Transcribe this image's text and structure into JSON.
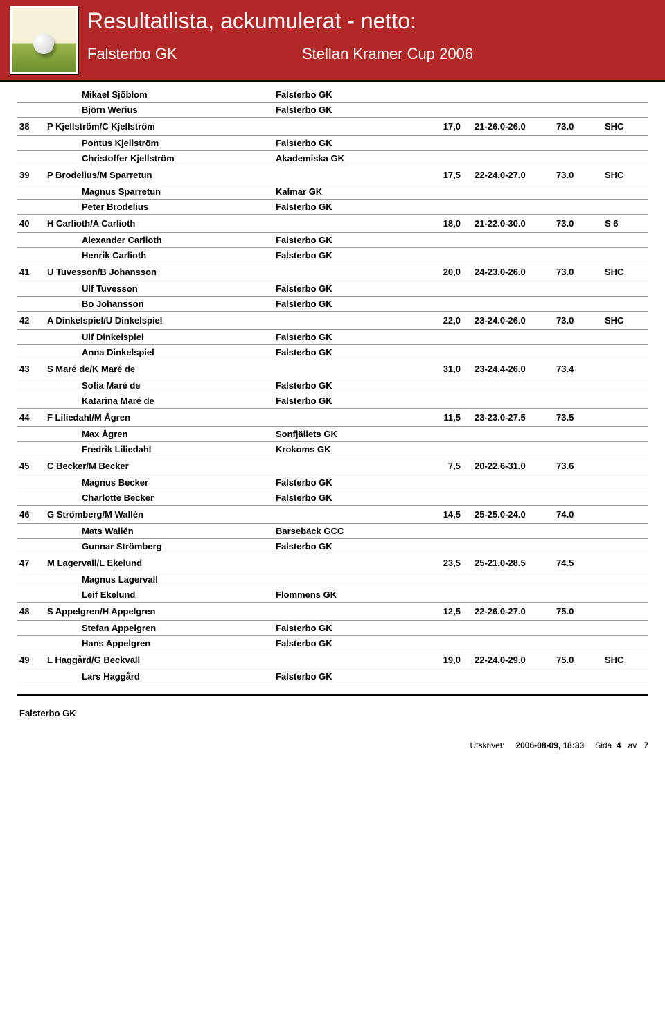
{
  "header": {
    "title": "Resultatlista, ackumulerat - netto:",
    "club": "Falsterbo GK",
    "event": "Stellan Kramer Cup 2006",
    "colors": {
      "bg": "#b22826",
      "text": "#ffffff"
    }
  },
  "pre_rows": [
    {
      "type": "player",
      "name": "Mikael Sjöblom",
      "club": "Falsterbo GK"
    },
    {
      "type": "player",
      "name": "Björn Werius",
      "club": "Falsterbo GK"
    }
  ],
  "groups": [
    {
      "rank": "38",
      "team": "P Kjellström/C Kjellström",
      "hcp": "17,0",
      "rounds": "21-26.0-26.0",
      "score": "73.0",
      "note": "SHC",
      "players": [
        {
          "name": "Pontus Kjellström",
          "club": "Falsterbo GK"
        },
        {
          "name": "Christoffer Kjellström",
          "club": "Akademiska GK"
        }
      ]
    },
    {
      "rank": "39",
      "team": "P Brodelius/M Sparretun",
      "hcp": "17,5",
      "rounds": "22-24.0-27.0",
      "score": "73.0",
      "note": "SHC",
      "players": [
        {
          "name": "Magnus Sparretun",
          "club": "Kalmar GK"
        },
        {
          "name": "Peter Brodelius",
          "club": "Falsterbo GK"
        }
      ]
    },
    {
      "rank": "40",
      "team": "H Carlioth/A Carlioth",
      "hcp": "18,0",
      "rounds": "21-22.0-30.0",
      "score": "73.0",
      "note": "S 6",
      "players": [
        {
          "name": "Alexander Carlioth",
          "club": "Falsterbo GK"
        },
        {
          "name": "Henrik Carlioth",
          "club": "Falsterbo GK"
        }
      ]
    },
    {
      "rank": "41",
      "team": "U Tuvesson/B Johansson",
      "hcp": "20,0",
      "rounds": "24-23.0-26.0",
      "score": "73.0",
      "note": "SHC",
      "players": [
        {
          "name": "Ulf Tuvesson",
          "club": "Falsterbo GK"
        },
        {
          "name": "Bo Johansson",
          "club": "Falsterbo GK"
        }
      ]
    },
    {
      "rank": "42",
      "team": "A Dinkelspiel/U Dinkelspiel",
      "hcp": "22,0",
      "rounds": "23-24.0-26.0",
      "score": "73.0",
      "note": "SHC",
      "players": [
        {
          "name": "Ulf Dinkelspiel",
          "club": "Falsterbo GK"
        },
        {
          "name": "Anna Dinkelspiel",
          "club": "Falsterbo GK"
        }
      ]
    },
    {
      "rank": "43",
      "team": "S Maré de/K Maré de",
      "hcp": "31,0",
      "rounds": "23-24.4-26.0",
      "score": "73.4",
      "note": "",
      "players": [
        {
          "name": "Sofia Maré de",
          "club": "Falsterbo GK"
        },
        {
          "name": "Katarina Maré de",
          "club": "Falsterbo GK"
        }
      ]
    },
    {
      "rank": "44",
      "team": "F Liliedahl/M Ågren",
      "hcp": "11,5",
      "rounds": "23-23.0-27.5",
      "score": "73.5",
      "note": "",
      "players": [
        {
          "name": "Max Ågren",
          "club": "Sonfjällets GK"
        },
        {
          "name": "Fredrik Liliedahl",
          "club": "Krokoms GK"
        }
      ]
    },
    {
      "rank": "45",
      "team": "C Becker/M Becker",
      "hcp": "7,5",
      "rounds": "20-22.6-31.0",
      "score": "73.6",
      "note": "",
      "players": [
        {
          "name": "Magnus Becker",
          "club": "Falsterbo GK"
        },
        {
          "name": "Charlotte Becker",
          "club": "Falsterbo GK"
        }
      ]
    },
    {
      "rank": "46",
      "team": "G Strömberg/M Wallén",
      "hcp": "14,5",
      "rounds": "25-25.0-24.0",
      "score": "74.0",
      "note": "",
      "players": [
        {
          "name": "Mats Wallén",
          "club": "Barsebäck GCC"
        },
        {
          "name": "Gunnar Strömberg",
          "club": "Falsterbo GK"
        }
      ]
    },
    {
      "rank": "47",
      "team": "M Lagervall/L Ekelund",
      "hcp": "23,5",
      "rounds": "25-21.0-28.5",
      "score": "74.5",
      "note": "",
      "players": [
        {
          "name": "Magnus Lagervall",
          "club": ""
        },
        {
          "name": "Leif Ekelund",
          "club": "Flommens GK"
        }
      ]
    },
    {
      "rank": "48",
      "team": "S Appelgren/H Appelgren",
      "hcp": "12,5",
      "rounds": "22-26.0-27.0",
      "score": "75.0",
      "note": "",
      "players": [
        {
          "name": "Stefan Appelgren",
          "club": "Falsterbo GK"
        },
        {
          "name": "Hans Appelgren",
          "club": "Falsterbo GK"
        }
      ]
    },
    {
      "rank": "49",
      "team": "L Haggård/G Beckvall",
      "hcp": "19,0",
      "rounds": "22-24.0-29.0",
      "score": "75.0",
      "note": "SHC",
      "players": [
        {
          "name": "Lars Haggård",
          "club": "Falsterbo GK"
        }
      ]
    }
  ],
  "footer": {
    "club": "Falsterbo GK",
    "printed_label": "Utskrivet:",
    "printed_value": "2006-08-09, 18:33",
    "page_label": "Sida",
    "page_num": "4",
    "page_of": "av",
    "page_total": "7"
  }
}
